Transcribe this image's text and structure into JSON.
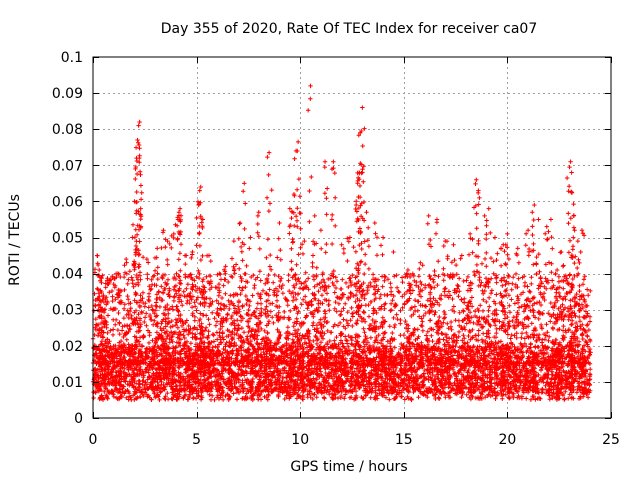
{
  "chart_data": {
    "type": "scatter",
    "title": "Day 355 of 2020, Rate Of TEC Index for receiver ca07",
    "xlabel": "GPS time / hours",
    "ylabel": "ROTI / TECUs",
    "xlim": [
      0,
      25
    ],
    "ylim": [
      0,
      0.1
    ],
    "xticks": [
      0,
      5,
      10,
      15,
      20,
      25
    ],
    "xtick_labels": [
      "0",
      "5",
      "10",
      "15",
      "20",
      "25"
    ],
    "yticks": [
      0,
      0.01,
      0.02,
      0.03,
      0.04,
      0.05,
      0.06,
      0.07,
      0.08,
      0.09,
      0.1
    ],
    "ytick_labels": [
      "0",
      "0.01",
      "0.02",
      "0.03",
      "0.04",
      "0.05",
      "0.06",
      "0.07",
      "0.08",
      "0.09",
      "0.1"
    ],
    "grid": true,
    "marker": "+",
    "color": "#ff0000",
    "x_data_range": [
      0,
      24
    ],
    "baseline_band": [
      0.005,
      0.02
    ],
    "series": [
      {
        "name": "ROTI",
        "points": [
          [
            0.2,
            0.045
          ],
          [
            0.3,
            0.041
          ],
          [
            0.4,
            0.039
          ],
          [
            0.5,
            0.034
          ],
          [
            0.6,
            0.033
          ],
          [
            1.2,
            0.04
          ],
          [
            1.6,
            0.044
          ],
          [
            1.9,
            0.05
          ],
          [
            2.0,
            0.06
          ],
          [
            2.05,
            0.069
          ],
          [
            2.1,
            0.072
          ],
          [
            2.15,
            0.077
          ],
          [
            2.2,
            0.081
          ],
          [
            2.25,
            0.082
          ],
          [
            2.3,
            0.058
          ],
          [
            2.6,
            0.044
          ],
          [
            3.1,
            0.047
          ],
          [
            3.4,
            0.052
          ],
          [
            3.6,
            0.049
          ],
          [
            3.9,
            0.051
          ],
          [
            4.1,
            0.055
          ],
          [
            4.15,
            0.057
          ],
          [
            4.2,
            0.058
          ],
          [
            4.5,
            0.045
          ],
          [
            4.8,
            0.046
          ],
          [
            5.1,
            0.059
          ],
          [
            5.15,
            0.063
          ],
          [
            5.2,
            0.064
          ],
          [
            5.3,
            0.055
          ],
          [
            5.6,
            0.045
          ],
          [
            6.1,
            0.04
          ],
          [
            6.4,
            0.042
          ],
          [
            6.8,
            0.049
          ],
          [
            7.1,
            0.054
          ],
          [
            7.3,
            0.065
          ],
          [
            7.6,
            0.05
          ],
          [
            8.0,
            0.057
          ],
          [
            8.4,
            0.061
          ],
          [
            8.5,
            0.0735
          ],
          [
            9.0,
            0.054
          ],
          [
            9.5,
            0.058
          ],
          [
            9.7,
            0.062
          ],
          [
            9.8,
            0.074
          ],
          [
            9.9,
            0.0765
          ],
          [
            10.2,
            0.049
          ],
          [
            10.5,
            0.092
          ],
          [
            10.7,
            0.056
          ],
          [
            11.0,
            0.052
          ],
          [
            11.2,
            0.071
          ],
          [
            11.6,
            0.071
          ],
          [
            12.0,
            0.048
          ],
          [
            12.4,
            0.05
          ],
          [
            12.7,
            0.059
          ],
          [
            12.8,
            0.0665
          ],
          [
            12.85,
            0.068
          ],
          [
            12.9,
            0.079
          ],
          [
            12.95,
            0.0795
          ],
          [
            13.0,
            0.086
          ],
          [
            13.2,
            0.057
          ],
          [
            13.6,
            0.054
          ],
          [
            14.0,
            0.05
          ],
          [
            14.5,
            0.046
          ],
          [
            15.2,
            0.041
          ],
          [
            15.8,
            0.043
          ],
          [
            16.2,
            0.056
          ],
          [
            16.6,
            0.055
          ],
          [
            17.0,
            0.049
          ],
          [
            17.4,
            0.048
          ],
          [
            17.8,
            0.045
          ],
          [
            18.2,
            0.051
          ],
          [
            18.5,
            0.066
          ],
          [
            18.6,
            0.063
          ],
          [
            18.9,
            0.056
          ],
          [
            19.1,
            0.058
          ],
          [
            19.4,
            0.05
          ],
          [
            19.8,
            0.048
          ],
          [
            20.0,
            0.051
          ],
          [
            20.5,
            0.047
          ],
          [
            21.0,
            0.052
          ],
          [
            21.2,
            0.057
          ],
          [
            21.3,
            0.059
          ],
          [
            21.5,
            0.055
          ],
          [
            21.9,
            0.053
          ],
          [
            22.1,
            0.055
          ],
          [
            22.4,
            0.041
          ],
          [
            22.6,
            0.046
          ],
          [
            23.0,
            0.0695
          ],
          [
            23.05,
            0.071
          ],
          [
            23.1,
            0.068
          ],
          [
            23.2,
            0.056
          ],
          [
            23.4,
            0.049
          ],
          [
            23.6,
            0.052
          ],
          [
            23.9,
            0.034
          ]
        ]
      }
    ]
  }
}
